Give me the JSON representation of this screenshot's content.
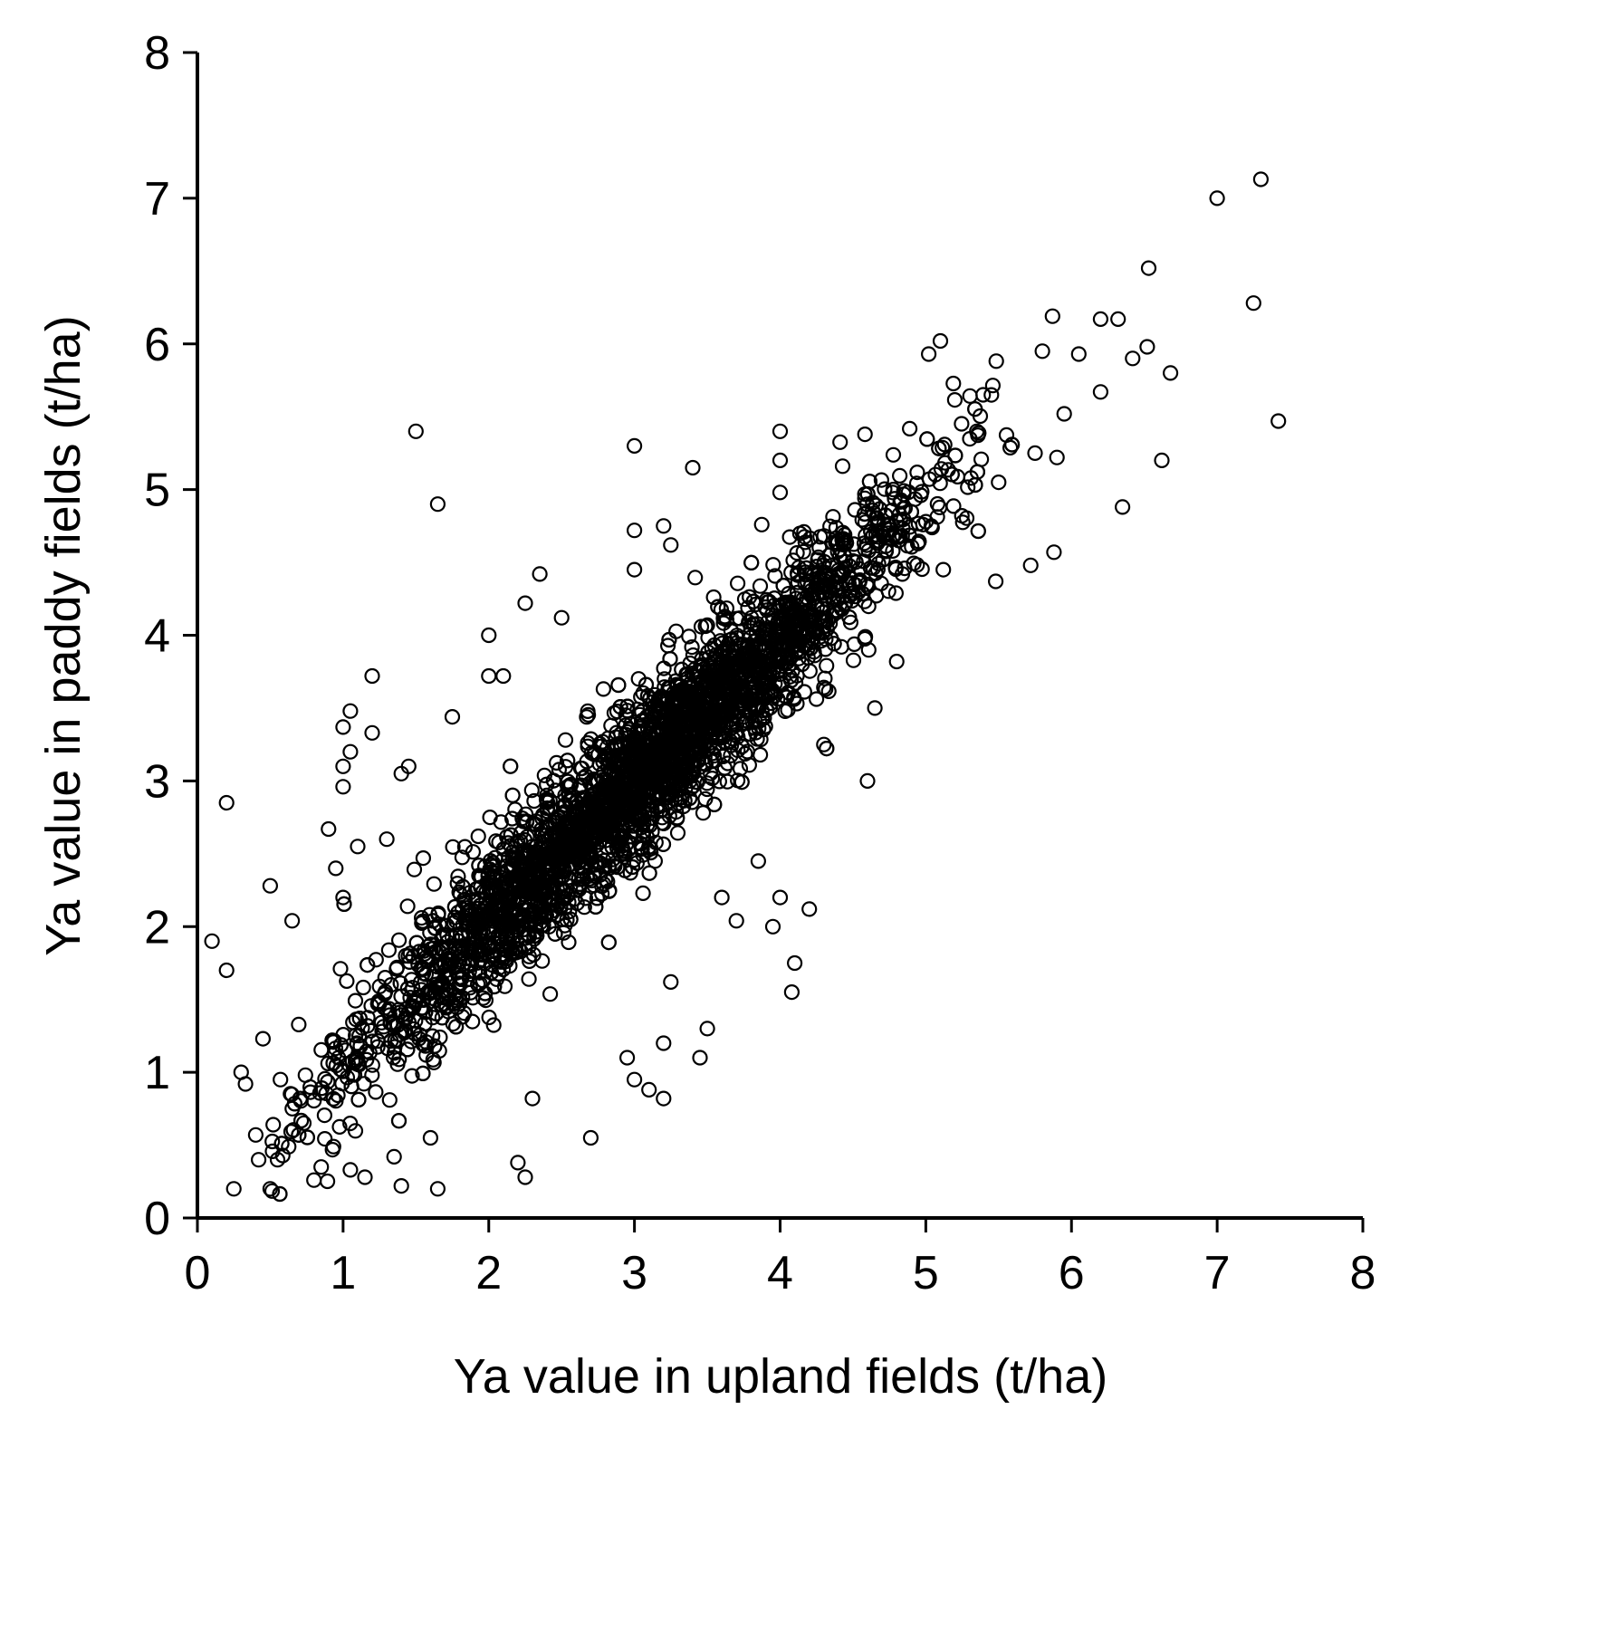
{
  "chart_data": {
    "type": "scatter",
    "title": "",
    "xlabel": "Ya value in upland fields (t/ha)",
    "ylabel": "Ya value in paddy fields (t/ha)",
    "xlim": [
      0,
      8
    ],
    "ylim": [
      0,
      8
    ],
    "xticks": [
      "0",
      "1",
      "2",
      "3",
      "4",
      "5",
      "6",
      "7",
      "8"
    ],
    "yticks": [
      "0",
      "1",
      "2",
      "3",
      "4",
      "5",
      "6",
      "7",
      "8"
    ],
    "grid": false,
    "marker": "open-circle",
    "color": "#000000",
    "outliers": [
      {
        "x": 0.1,
        "y": 1.9
      },
      {
        "x": 0.2,
        "y": 2.85
      },
      {
        "x": 0.2,
        "y": 1.7
      },
      {
        "x": 0.25,
        "y": 0.2
      },
      {
        "x": 0.3,
        "y": 1.0
      },
      {
        "x": 0.33,
        "y": 0.92
      },
      {
        "x": 0.4,
        "y": 0.57
      },
      {
        "x": 0.42,
        "y": 0.4
      },
      {
        "x": 0.45,
        "y": 1.23
      },
      {
        "x": 0.5,
        "y": 2.28
      },
      {
        "x": 0.5,
        "y": 0.2
      },
      {
        "x": 0.52,
        "y": 0.64
      },
      {
        "x": 0.55,
        "y": 0.4
      },
      {
        "x": 0.57,
        "y": 0.95
      },
      {
        "x": 0.65,
        "y": 2.04
      },
      {
        "x": 0.9,
        "y": 2.67
      },
      {
        "x": 0.95,
        "y": 2.4
      },
      {
        "x": 1.0,
        "y": 3.37
      },
      {
        "x": 1.0,
        "y": 3.1
      },
      {
        "x": 1.0,
        "y": 2.96
      },
      {
        "x": 1.0,
        "y": 2.2
      },
      {
        "x": 1.05,
        "y": 3.48
      },
      {
        "x": 1.05,
        "y": 3.2
      },
      {
        "x": 1.1,
        "y": 2.55
      },
      {
        "x": 1.2,
        "y": 3.72
      },
      {
        "x": 1.2,
        "y": 3.33
      },
      {
        "x": 1.3,
        "y": 2.6
      },
      {
        "x": 1.5,
        "y": 5.4
      },
      {
        "x": 1.65,
        "y": 4.9
      },
      {
        "x": 1.75,
        "y": 3.44
      },
      {
        "x": 1.4,
        "y": 3.05
      },
      {
        "x": 1.45,
        "y": 3.1
      },
      {
        "x": 1.55,
        "y": 2.47
      },
      {
        "x": 1.6,
        "y": 0.55
      },
      {
        "x": 1.65,
        "y": 0.2
      },
      {
        "x": 1.4,
        "y": 0.22
      },
      {
        "x": 1.35,
        "y": 0.42
      },
      {
        "x": 1.15,
        "y": 0.28
      },
      {
        "x": 1.05,
        "y": 0.33
      },
      {
        "x": 0.8,
        "y": 0.26
      },
      {
        "x": 0.85,
        "y": 0.35
      },
      {
        "x": 2.0,
        "y": 4.0
      },
      {
        "x": 2.0,
        "y": 3.72
      },
      {
        "x": 2.1,
        "y": 3.72
      },
      {
        "x": 2.25,
        "y": 4.22
      },
      {
        "x": 2.35,
        "y": 4.42
      },
      {
        "x": 2.5,
        "y": 4.12
      },
      {
        "x": 2.25,
        "y": 0.28
      },
      {
        "x": 2.2,
        "y": 0.38
      },
      {
        "x": 2.3,
        "y": 0.82
      },
      {
        "x": 2.7,
        "y": 0.55
      },
      {
        "x": 2.95,
        "y": 1.1
      },
      {
        "x": 3.0,
        "y": 0.95
      },
      {
        "x": 3.1,
        "y": 0.88
      },
      {
        "x": 3.2,
        "y": 0.82
      },
      {
        "x": 3.2,
        "y": 1.2
      },
      {
        "x": 3.45,
        "y": 1.1
      },
      {
        "x": 3.5,
        "y": 1.3
      },
      {
        "x": 3.25,
        "y": 1.62
      },
      {
        "x": 3.0,
        "y": 5.3
      },
      {
        "x": 3.4,
        "y": 5.15
      },
      {
        "x": 3.2,
        "y": 4.75
      },
      {
        "x": 3.25,
        "y": 4.62
      },
      {
        "x": 3.0,
        "y": 4.72
      },
      {
        "x": 3.0,
        "y": 4.45
      },
      {
        "x": 4.0,
        "y": 5.4
      },
      {
        "x": 4.0,
        "y": 5.2
      },
      {
        "x": 4.0,
        "y": 4.98
      },
      {
        "x": 3.95,
        "y": 2.0
      },
      {
        "x": 4.0,
        "y": 2.2
      },
      {
        "x": 4.2,
        "y": 2.12
      },
      {
        "x": 4.1,
        "y": 1.75
      },
      {
        "x": 4.08,
        "y": 1.55
      },
      {
        "x": 3.7,
        "y": 2.04
      },
      {
        "x": 3.6,
        "y": 2.2
      },
      {
        "x": 3.85,
        "y": 2.45
      },
      {
        "x": 4.6,
        "y": 3.0
      },
      {
        "x": 4.3,
        "y": 3.25
      },
      {
        "x": 4.8,
        "y": 3.82
      },
      {
        "x": 4.65,
        "y": 3.5
      },
      {
        "x": 5.1,
        "y": 6.02
      },
      {
        "x": 5.02,
        "y": 5.93
      },
      {
        "x": 5.48,
        "y": 4.37
      },
      {
        "x": 5.72,
        "y": 4.48
      },
      {
        "x": 5.88,
        "y": 4.57
      },
      {
        "x": 6.35,
        "y": 4.88
      },
      {
        "x": 6.62,
        "y": 5.2
      },
      {
        "x": 5.87,
        "y": 6.19
      },
      {
        "x": 6.2,
        "y": 6.17
      },
      {
        "x": 6.32,
        "y": 6.17
      },
      {
        "x": 6.53,
        "y": 6.52
      },
      {
        "x": 6.68,
        "y": 5.8
      },
      {
        "x": 6.52,
        "y": 5.98
      },
      {
        "x": 6.42,
        "y": 5.9
      },
      {
        "x": 7.0,
        "y": 7.0
      },
      {
        "x": 7.3,
        "y": 7.13
      },
      {
        "x": 7.25,
        "y": 6.28
      },
      {
        "x": 7.42,
        "y": 5.47
      },
      {
        "x": 6.2,
        "y": 5.67
      },
      {
        "x": 6.05,
        "y": 5.93
      },
      {
        "x": 5.95,
        "y": 5.52
      },
      {
        "x": 5.8,
        "y": 5.95
      },
      {
        "x": 5.9,
        "y": 5.22
      },
      {
        "x": 5.75,
        "y": 5.25
      },
      {
        "x": 5.45,
        "y": 5.65
      },
      {
        "x": 5.5,
        "y": 5.05
      },
      {
        "x": 5.35,
        "y": 5.4
      },
      {
        "x": 5.12,
        "y": 4.45
      }
    ],
    "cluster": {
      "n_points": 3600,
      "trend": {
        "slope": 0.97,
        "intercept": 0.08
      },
      "x_range": [
        0.5,
        5.6
      ],
      "spread_sd": 0.28
    }
  }
}
